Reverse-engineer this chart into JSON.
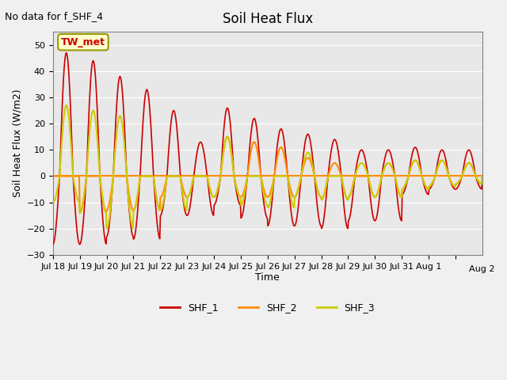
{
  "title": "Soil Heat Flux",
  "note": "No data for f_SHF_4",
  "ylabel": "Soil Heat Flux (W/m2)",
  "xlabel": "Time",
  "annotation": "TW_met",
  "ylim": [
    -30,
    55
  ],
  "yticks": [
    -30,
    -20,
    -10,
    0,
    10,
    20,
    30,
    40,
    50
  ],
  "xtick_labels": [
    "Jul 18",
    "Jul 19",
    "Jul 20",
    "Jul 21",
    "Jul 22",
    "Jul 23",
    "Jul 24",
    "Jul 25",
    "Jul 26",
    "Jul 27",
    "Jul 28",
    "Jul 29",
    "Jul 30",
    "Jul 31",
    "Aug 1",
    "Aug 2"
  ],
  "shf1_color": "#cc0000",
  "shf2_color": "#ff8c00",
  "shf3_color": "#cccc00",
  "bg_color": "#e8e8e8",
  "legend_entries": [
    "SHF_1",
    "SHF_2",
    "SHF_3"
  ],
  "n_days": 16,
  "shf1_pos": [
    47,
    44,
    38,
    33,
    25,
    13,
    26,
    22,
    18,
    16,
    14,
    10,
    10,
    11,
    10,
    10
  ],
  "shf1_neg": [
    26,
    26,
    23,
    24,
    15,
    15,
    11,
    16,
    19,
    19,
    20,
    17,
    17,
    7,
    5,
    5
  ],
  "shf2_pos": [
    0,
    0,
    0,
    0,
    0,
    0,
    15,
    13,
    11,
    7,
    5,
    0,
    5,
    6,
    6,
    5
  ],
  "shf2_neg": [
    0,
    14,
    13,
    13,
    8,
    8,
    8,
    8,
    8,
    8,
    9,
    8,
    8,
    5,
    4,
    3
  ],
  "shf3_pos": [
    27,
    25,
    23,
    0,
    0,
    0,
    15,
    0,
    0,
    9,
    0,
    5,
    5,
    6,
    6,
    5
  ],
  "shf3_neg": [
    10,
    14,
    20,
    13,
    13,
    8,
    8,
    11,
    12,
    8,
    9,
    8,
    8,
    5,
    4,
    3
  ]
}
